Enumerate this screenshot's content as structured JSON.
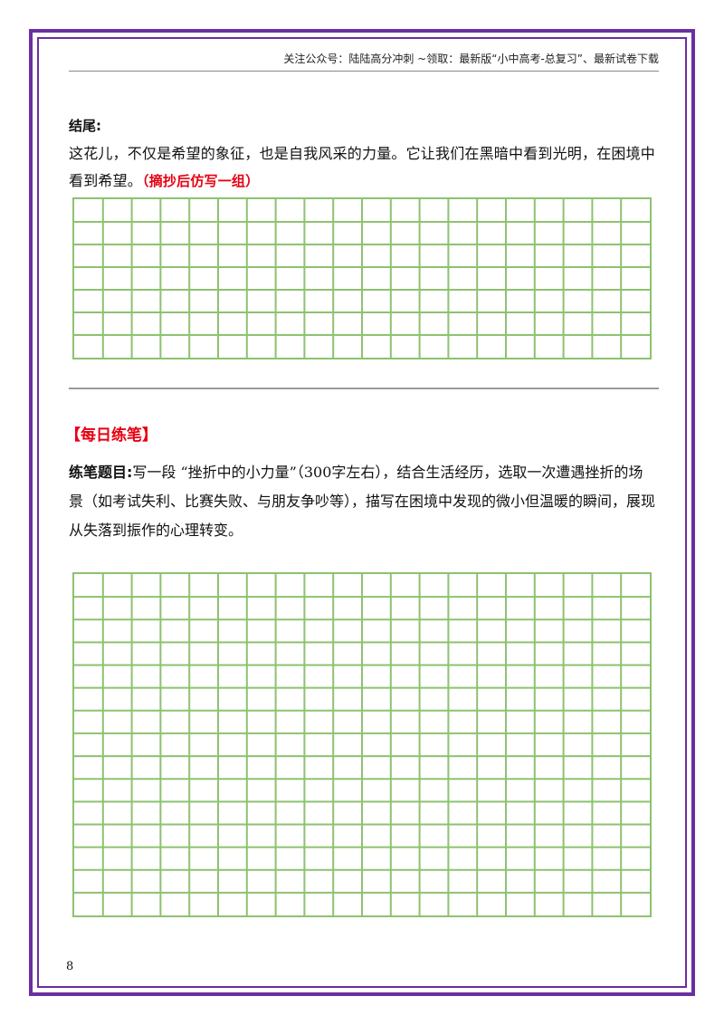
{
  "header": {
    "promo_text": "关注公众号：陆陆高分冲刺 ~领取：最新版“小中高考-总复习”、最新试卷下载"
  },
  "ending": {
    "heading": "结尾:",
    "paragraph": "这花儿，不仅是希望的象征，也是自我风采的力量。它让我们在黑暗中看到光明，在困境中看到希望。",
    "instruction": "（摘抄后仿写一组）",
    "grid": {
      "rows": 7,
      "cols": 20
    }
  },
  "practice": {
    "heading": "【每日练笔】",
    "label": "练笔题目:",
    "prompt": "写一段 “挫折中的小力量”（300字左右），结合生活经历，选取一次遭遇挫折的场景（如考试失利、比赛失败、与朋友争吵等），描写在困境中发现的微小但温暖的瞬间，展现从失落到振作的心理转变。",
    "grid": {
      "rows": 15,
      "cols": 20
    }
  },
  "page_number": "8",
  "colors": {
    "frame": "#6a2fa0",
    "grid": "#8dc26f",
    "accent_red": "#e60012"
  }
}
